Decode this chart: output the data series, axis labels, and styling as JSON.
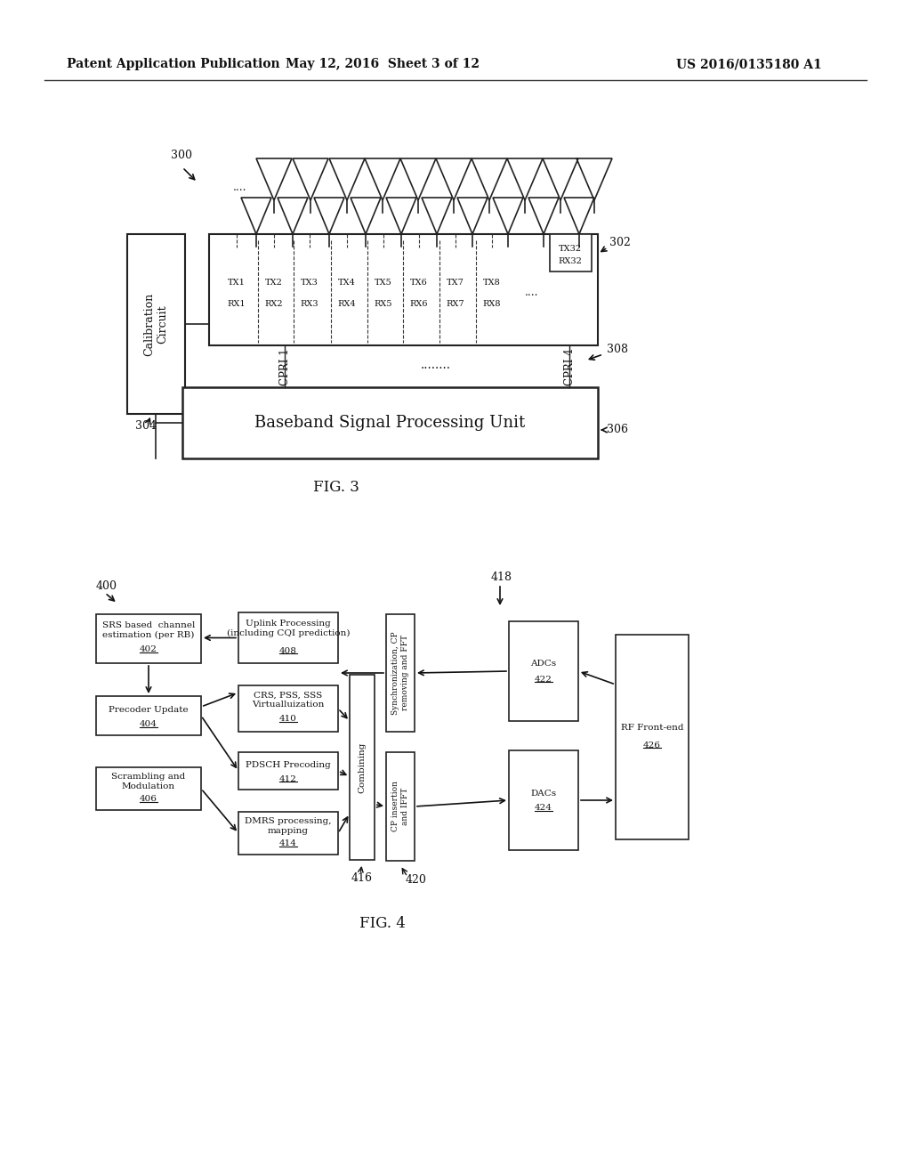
{
  "bg_color": "#ffffff",
  "header_left": "Patent Application Publication",
  "header_mid": "May 12, 2016  Sheet 3 of 12",
  "header_right": "US 2016/0135180 A1",
  "fig3_label": "FIG. 3",
  "fig4_label": "FIG. 4"
}
